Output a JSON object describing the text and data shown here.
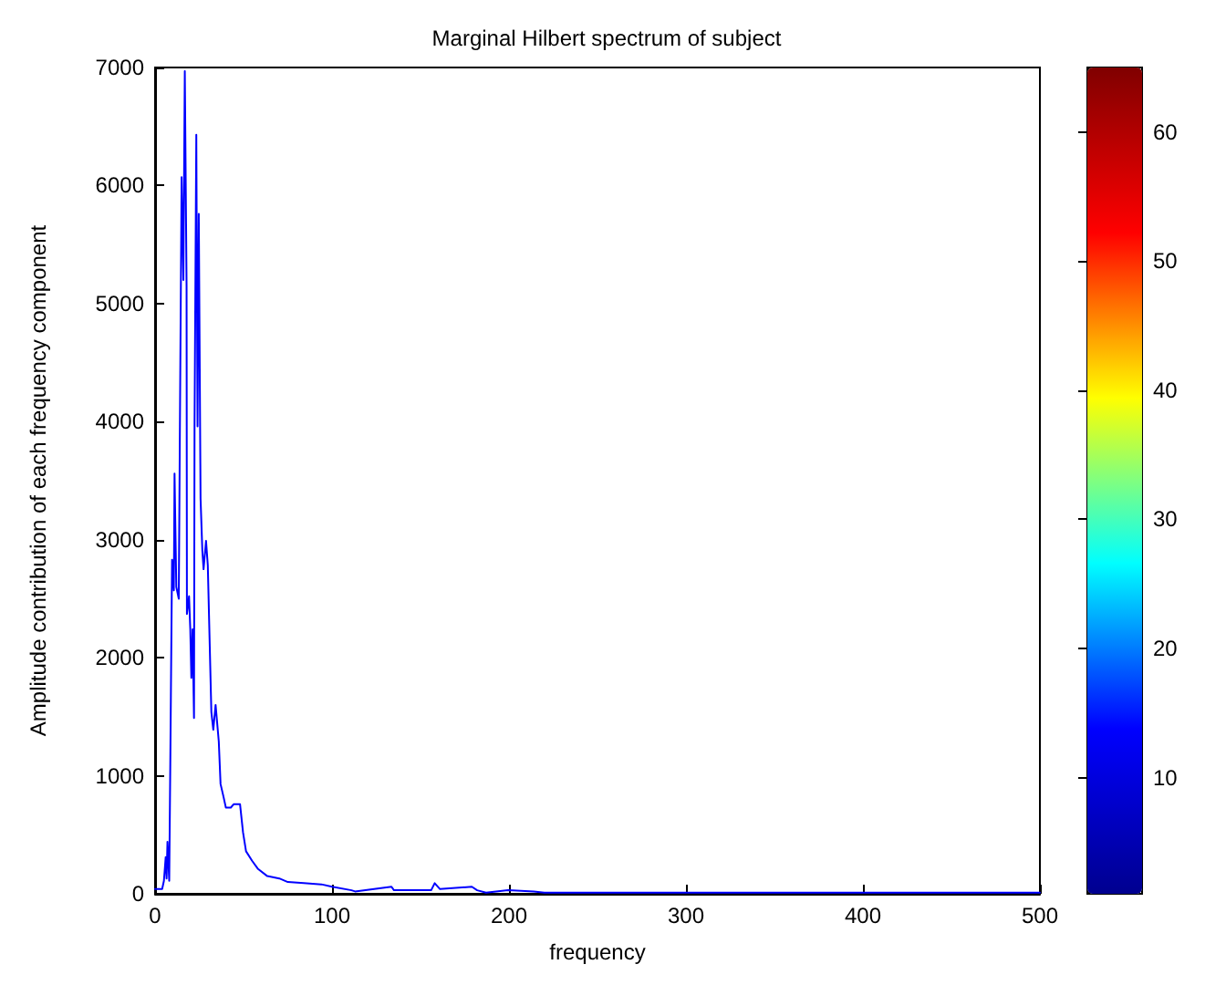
{
  "chart_data": {
    "type": "line",
    "title": "Marginal Hilbert spectrum of subject",
    "xlabel": "frequency",
    "ylabel": "Amplitude contribution of each frequency component",
    "x": [
      0,
      4,
      5,
      6,
      6.5,
      7,
      8,
      8.6,
      9.6,
      10.6,
      11,
      12,
      13.4,
      14,
      15,
      16,
      16.8,
      17.8,
      18,
      19.2,
      19.9,
      20.5,
      21.2,
      22,
      22.3,
      23.3,
      24,
      24.7,
      25.7,
      26.7,
      27.4,
      28.8,
      29.8,
      30.8,
      31.8,
      32.9,
      34.2,
      36,
      37,
      38.7,
      40,
      42.8,
      44.5,
      48,
      49.7,
      51.4,
      54.8,
      58.2,
      63.4,
      70.2,
      75,
      84,
      94,
      100,
      111,
      113,
      133.6,
      135,
      156,
      158,
      161,
      179,
      182,
      187,
      199.5,
      214,
      220,
      300,
      400,
      500
    ],
    "series": [
      {
        "color": "#0000ff",
        "values": [
          40,
          40,
          110,
          310,
          130,
          440,
          110,
          1100,
          2830,
          2570,
          3560,
          2600,
          2500,
          3890,
          6070,
          5200,
          6970,
          5150,
          2370,
          2520,
          2240,
          1830,
          2240,
          1490,
          3960,
          6430,
          3960,
          5760,
          3350,
          2910,
          2750,
          2990,
          2780,
          2160,
          1540,
          1390,
          1600,
          1290,
          930,
          820,
          730,
          730,
          760,
          760,
          520,
          360,
          280,
          210,
          150,
          130,
          100,
          90,
          80,
          60,
          30,
          20,
          60,
          30,
          30,
          90,
          40,
          60,
          30,
          10,
          30,
          20,
          10,
          10,
          10,
          10
        ]
      }
    ],
    "xlim": [
      0,
      500
    ],
    "xticks": [
      0,
      100,
      200,
      300,
      400,
      500
    ],
    "ylim": [
      0,
      7000
    ],
    "yticks": [
      0,
      1000,
      2000,
      3000,
      4000,
      5000,
      6000,
      7000
    ],
    "clim": [
      1,
      65
    ],
    "cticks": [
      10,
      20,
      30,
      40,
      50,
      60
    ],
    "grid": false,
    "marker": "none",
    "line_style": "solid"
  }
}
